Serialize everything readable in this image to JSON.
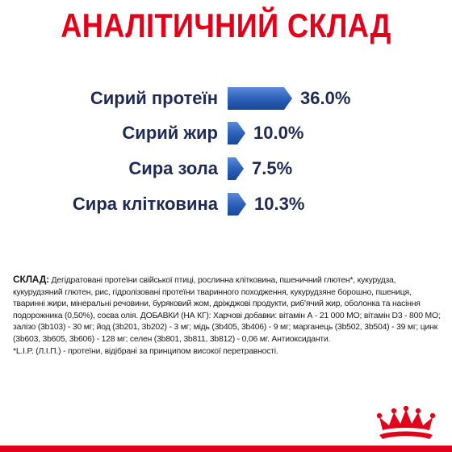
{
  "title": "АНАЛІТИЧНИЙ СКЛАД",
  "nutrients": [
    {
      "label": "Сирий протеїн",
      "value": "36.0%",
      "percent": 36.0
    },
    {
      "label": "Сирий жир",
      "value": "10.0%",
      "percent": 10.0
    },
    {
      "label": "Сира зола",
      "value": "7.5%",
      "percent": 7.5
    },
    {
      "label": "Сира клітковина",
      "value": "10.3%",
      "percent": 10.3
    }
  ],
  "composition": {
    "heading": "СКЛАД:",
    "lines": [
      " Дегідратовані протеїни свійської птиці, рослинна клітковина, пшеничний глютен*, кукурудза,",
      "кукурудзяний глютен, рис, гідролізовані протеїни тваринного походження, кукурудзяне борошно, пшениця,",
      "тваринні жири, мінеральні речовини, буряковий жом, дріжджові продукти, риб'ячий жир, оболонка та насіння",
      "подорожника (0,50%), соєва олія. ДОБАВКИ (НА КГ): Харчові добавки: вітамін А - 21 000 МО; вітамін D3 - 800 МО;",
      "залізо (3b103) - 30 мг; йод (3b201, 3b202) - 3 мг; мідь (3b405, 3b406) - 9 мг; марганець (3b502, 3b504) - 39 мг; цинк",
      "(3b603, 3b605, 3b606) - 128 мг; селен (3b801, 3b811, 3b812) - 0,06 мг. Антиоксиданти.",
      "*L.I.P. (Л.І.П.) - протеїни, відібрані за принципом високої перетравності."
    ]
  },
  "brand": "Royal Canin",
  "colors": {
    "title": "#e2001a",
    "bar": "#2a5eb8",
    "text": "#1f2a52",
    "footer": "#e2001a"
  }
}
